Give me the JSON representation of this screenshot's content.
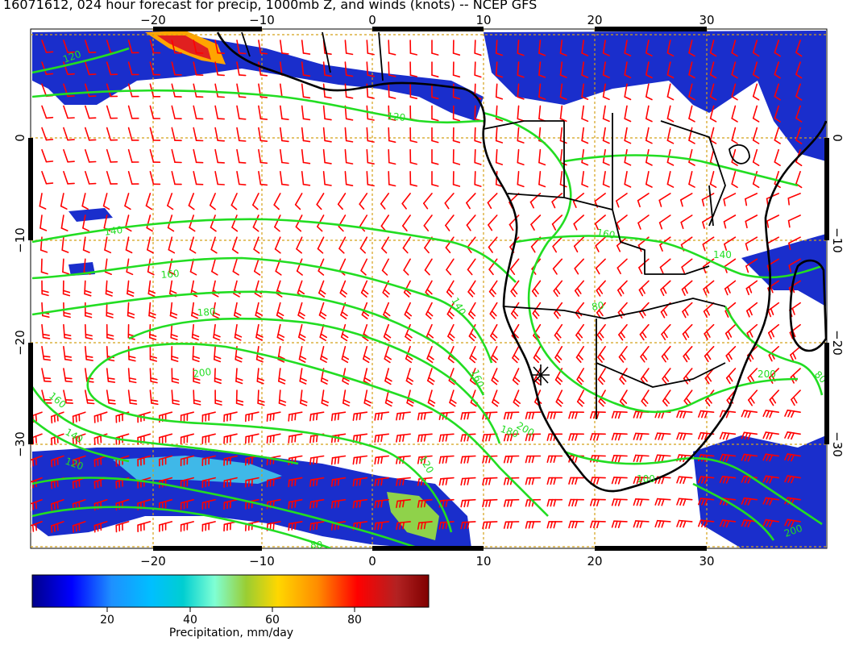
{
  "title": "16071612, 024 hour forecast for precip, 1000mb Z, and winds (knots) -- NCEP GFS",
  "map": {
    "lon_range": [
      -30,
      40
    ],
    "lat_range": [
      -40,
      10
    ],
    "bottom_lon_ticks": [
      "−20",
      "−10",
      "0",
      "10",
      "20",
      "30"
    ],
    "top_lon_ticks": [
      "−20",
      "−10",
      "0",
      "10",
      "20",
      "30"
    ],
    "left_lat_ticks": [
      "0",
      "−10",
      "−20",
      "−30"
    ],
    "right_lat_ticks": [
      "0",
      "−10",
      "−20",
      "−30"
    ],
    "contour_labels": [
      "120",
      "120",
      "140",
      "160",
      "180",
      "200",
      "160",
      "140",
      "120",
      "140",
      "160",
      "180",
      "200",
      "160",
      "80",
      "200",
      "80",
      "100",
      "140",
      "80",
      "120",
      "200"
    ],
    "colors": {
      "coastline": "#000000",
      "height_contours": "#22dd22",
      "wind_barbs": "#ff0000",
      "gridlines": "#d4a017",
      "ocean_background": "#ffffff"
    },
    "marker_icon": "asterisk-marker"
  },
  "colorbar": {
    "ticks": [
      "20",
      "40",
      "60",
      "80"
    ],
    "label": "Precipitation, mm/day",
    "range": [
      0,
      100
    ],
    "colors": [
      "#00008b",
      "#0000ff",
      "#1e90ff",
      "#00bfff",
      "#00ced1",
      "#7fffd4",
      "#9acd32",
      "#ffd700",
      "#ff8c00",
      "#ff0000",
      "#b22222",
      "#800000"
    ]
  }
}
